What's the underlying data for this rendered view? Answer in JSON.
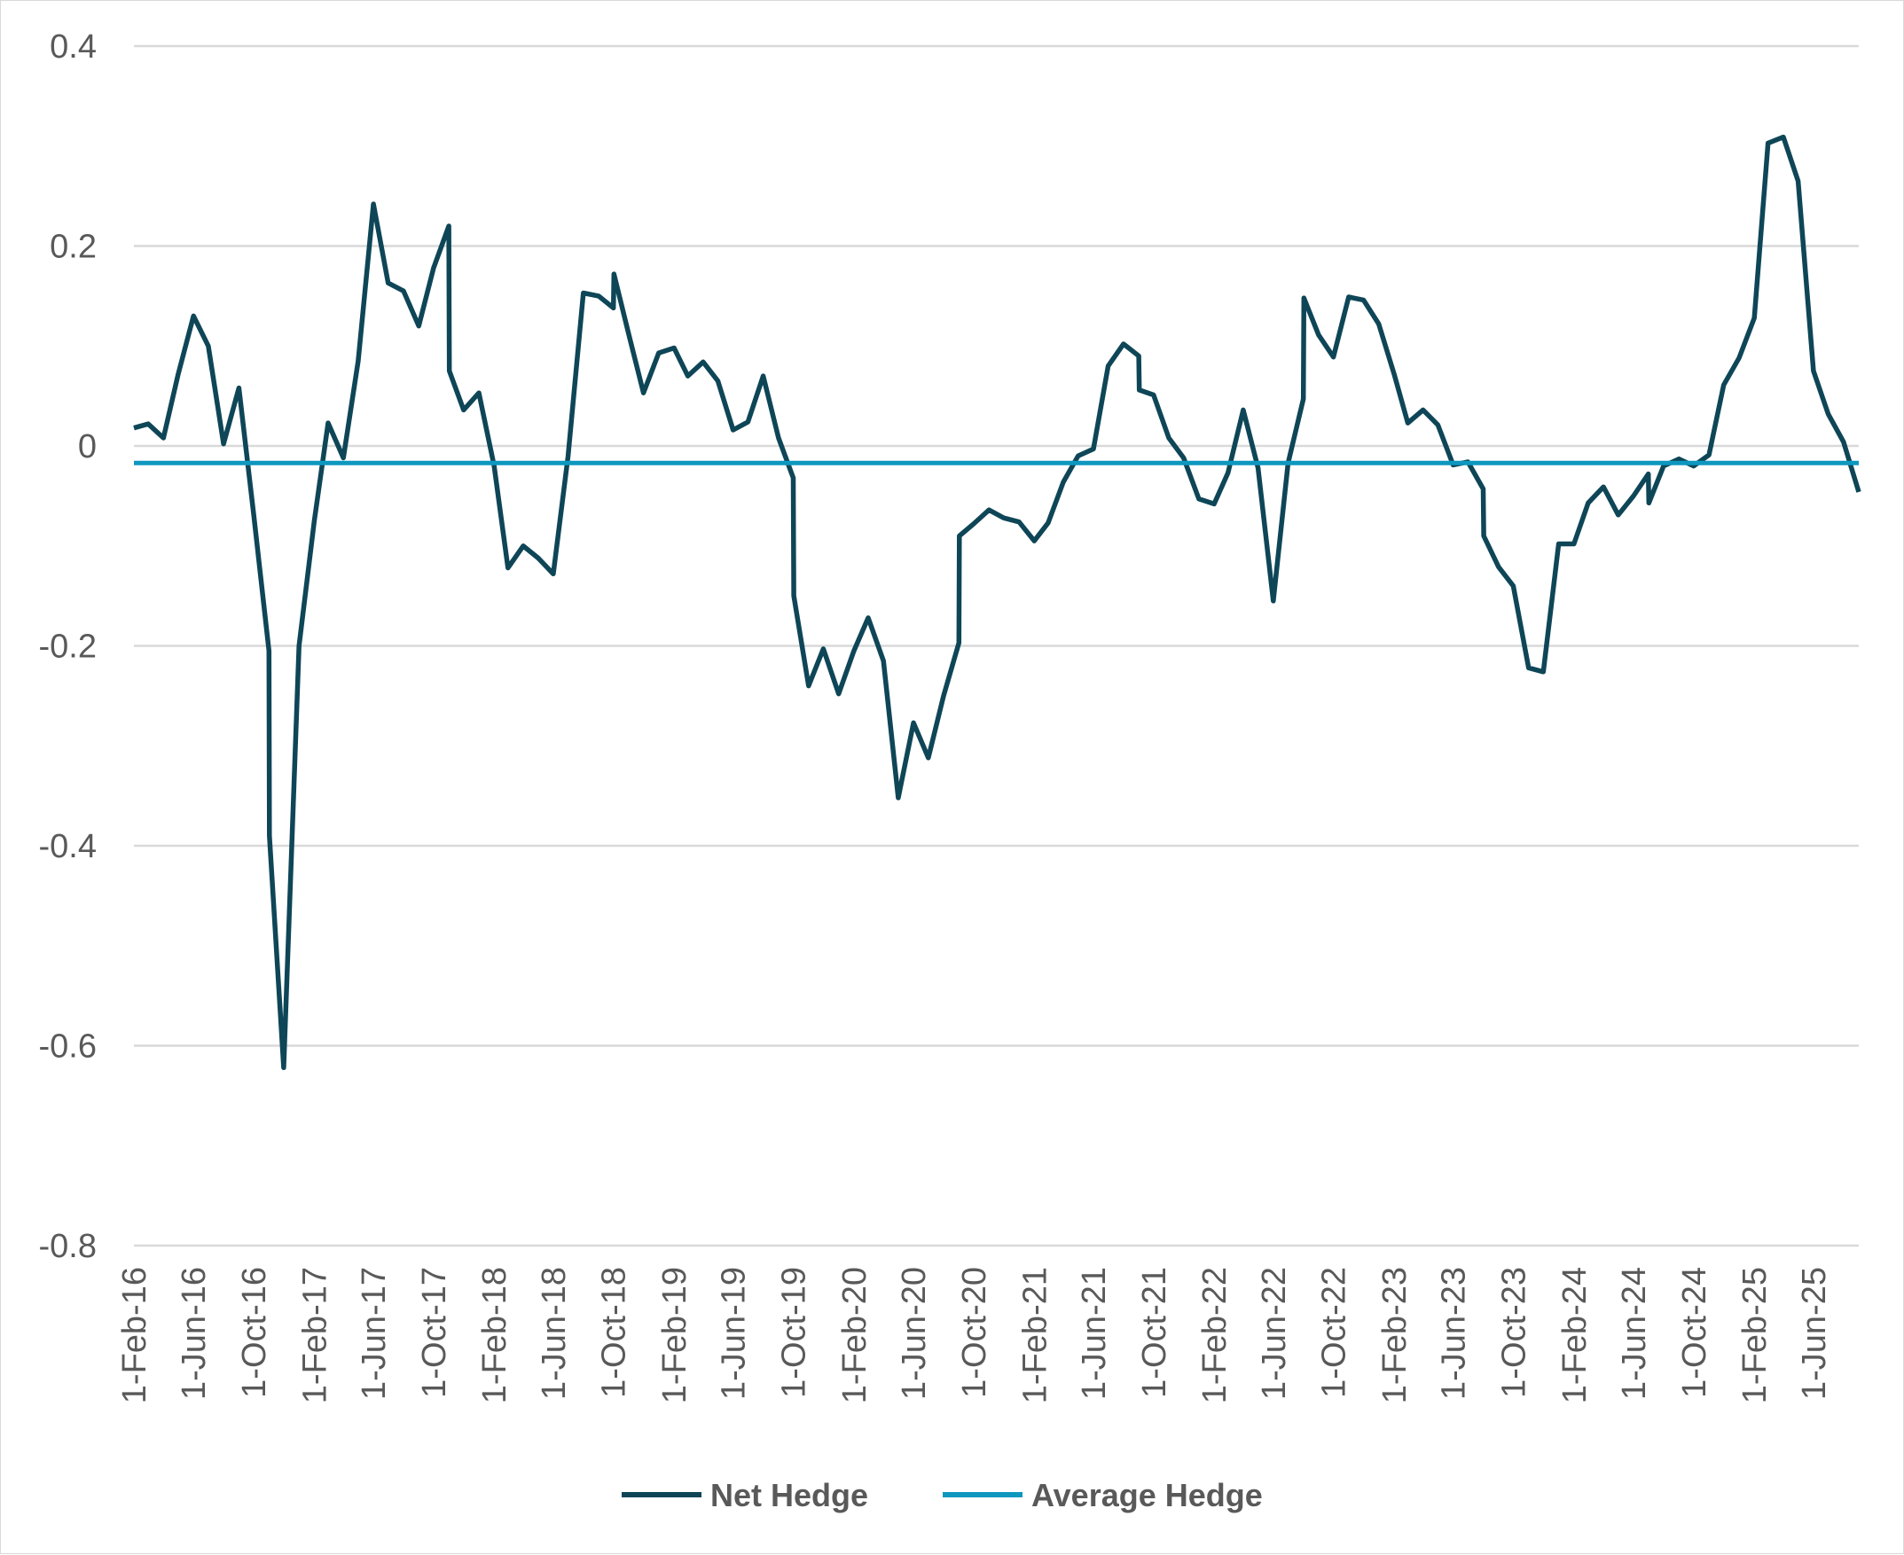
{
  "chart_data": {
    "type": "line",
    "title": "",
    "xlabel": "",
    "ylabel": "",
    "ylim": [
      -0.8,
      0.4
    ],
    "y_ticks": [
      "0.4",
      "0.2",
      "0",
      "-0.2",
      "-0.4",
      "-0.6",
      "-0.8"
    ],
    "y_tick_values": [
      0.4,
      0.2,
      0,
      -0.2,
      -0.4,
      -0.6,
      -0.8
    ],
    "grid": "horizontal",
    "legend_position": "bottom",
    "x_ticks": [
      "1-Feb-16",
      "1-Jun-16",
      "1-Oct-16",
      "1-Feb-17",
      "1-Jun-17",
      "1-Oct-17",
      "1-Feb-18",
      "1-Jun-18",
      "1-Oct-18",
      "1-Feb-19",
      "1-Jun-19",
      "1-Oct-19",
      "1-Feb-20",
      "1-Jun-20",
      "1-Oct-20",
      "1-Feb-21",
      "1-Jun-21",
      "1-Oct-21",
      "1-Feb-22",
      "1-Jun-22",
      "1-Oct-22",
      "1-Feb-23",
      "1-Jun-23",
      "1-Oct-23",
      "1-Feb-24",
      "1-Jun-24",
      "1-Oct-24",
      "1-Feb-25",
      "1-Jun-25"
    ],
    "x_range": [
      "2016-02-01",
      "2025-09-01"
    ],
    "series": [
      {
        "name": "Net Hedge",
        "color": "#0e4657",
        "points": [
          [
            "2016-02-01",
            0.018
          ],
          [
            "2016-03-01",
            0.022
          ],
          [
            "2016-04-01",
            0.008
          ],
          [
            "2016-05-01",
            0.072
          ],
          [
            "2016-06-01",
            0.13
          ],
          [
            "2016-07-01",
            0.1
          ],
          [
            "2016-08-01",
            0.002
          ],
          [
            "2016-09-01",
            0.058
          ],
          [
            "2016-10-01",
            -0.068
          ],
          [
            "2016-11-01",
            -0.205
          ],
          [
            "2016-11-02",
            -0.39
          ],
          [
            "2016-12-01",
            -0.622
          ],
          [
            "2017-01-01",
            -0.2
          ],
          [
            "2017-02-01",
            -0.075
          ],
          [
            "2017-03-01",
            0.023
          ],
          [
            "2017-04-01",
            -0.012
          ],
          [
            "2017-05-01",
            0.085
          ],
          [
            "2017-06-01",
            0.242
          ],
          [
            "2017-07-01",
            0.163
          ],
          [
            "2017-08-01",
            0.155
          ],
          [
            "2017-09-01",
            0.12
          ],
          [
            "2017-10-01",
            0.178
          ],
          [
            "2017-11-01",
            0.22
          ],
          [
            "2017-11-02",
            0.075
          ],
          [
            "2017-12-01",
            0.036
          ],
          [
            "2018-01-01",
            0.053
          ],
          [
            "2018-02-01",
            -0.02
          ],
          [
            "2018-03-01",
            -0.122
          ],
          [
            "2018-04-01",
            -0.1
          ],
          [
            "2018-05-01",
            -0.112
          ],
          [
            "2018-06-01",
            -0.128
          ],
          [
            "2018-07-01",
            -0.01
          ],
          [
            "2018-08-01",
            0.153
          ],
          [
            "2018-09-01",
            0.15
          ],
          [
            "2018-10-01",
            0.138
          ],
          [
            "2018-10-02",
            0.172
          ],
          [
            "2018-11-01",
            0.112
          ],
          [
            "2018-12-01",
            0.053
          ],
          [
            "2019-01-01",
            0.093
          ],
          [
            "2019-02-01",
            0.098
          ],
          [
            "2019-03-01",
            0.07
          ],
          [
            "2019-04-01",
            0.084
          ],
          [
            "2019-05-01",
            0.065
          ],
          [
            "2019-06-01",
            0.016
          ],
          [
            "2019-07-01",
            0.024
          ],
          [
            "2019-08-01",
            0.07
          ],
          [
            "2019-09-01",
            0.008
          ],
          [
            "2019-10-01",
            -0.032
          ],
          [
            "2019-10-02",
            -0.15
          ],
          [
            "2019-11-01",
            -0.24
          ],
          [
            "2019-12-01",
            -0.203
          ],
          [
            "2020-01-01",
            -0.248
          ],
          [
            "2020-02-01",
            -0.205
          ],
          [
            "2020-03-01",
            -0.172
          ],
          [
            "2020-04-01",
            -0.215
          ],
          [
            "2020-05-01",
            -0.352
          ],
          [
            "2020-06-01",
            -0.277
          ],
          [
            "2020-07-01",
            -0.312
          ],
          [
            "2020-08-01",
            -0.25
          ],
          [
            "2020-09-01",
            -0.197
          ],
          [
            "2020-09-02",
            -0.09
          ],
          [
            "2020-10-01",
            -0.078
          ],
          [
            "2020-11-01",
            -0.064
          ],
          [
            "2020-12-01",
            -0.072
          ],
          [
            "2021-01-01",
            -0.076
          ],
          [
            "2021-02-01",
            -0.095
          ],
          [
            "2021-03-01",
            -0.077
          ],
          [
            "2021-04-01",
            -0.036
          ],
          [
            "2021-05-01",
            -0.01
          ],
          [
            "2021-06-01",
            -0.003
          ],
          [
            "2021-07-01",
            0.08
          ],
          [
            "2021-08-01",
            0.102
          ],
          [
            "2021-09-01",
            0.09
          ],
          [
            "2021-09-02",
            0.056
          ],
          [
            "2021-10-01",
            0.051
          ],
          [
            "2021-11-01",
            0.008
          ],
          [
            "2021-12-01",
            -0.012
          ],
          [
            "2022-01-01",
            -0.053
          ],
          [
            "2022-02-01",
            -0.058
          ],
          [
            "2022-03-01",
            -0.027
          ],
          [
            "2022-04-01",
            0.036
          ],
          [
            "2022-05-01",
            -0.022
          ],
          [
            "2022-06-01",
            -0.155
          ],
          [
            "2022-07-01",
            -0.017
          ],
          [
            "2022-08-01",
            0.047
          ],
          [
            "2022-08-02",
            0.148
          ],
          [
            "2022-09-01",
            0.111
          ],
          [
            "2022-10-01",
            0.089
          ],
          [
            "2022-11-01",
            0.149
          ],
          [
            "2022-12-01",
            0.146
          ],
          [
            "2023-01-01",
            0.122
          ],
          [
            "2023-02-01",
            0.072
          ],
          [
            "2023-03-01",
            0.023
          ],
          [
            "2023-04-01",
            0.036
          ],
          [
            "2023-05-01",
            0.021
          ],
          [
            "2023-06-01",
            -0.019
          ],
          [
            "2023-07-01",
            -0.016
          ],
          [
            "2023-08-01",
            -0.043
          ],
          [
            "2023-08-02",
            -0.09
          ],
          [
            "2023-09-01",
            -0.121
          ],
          [
            "2023-10-01",
            -0.14
          ],
          [
            "2023-11-01",
            -0.222
          ],
          [
            "2023-12-01",
            -0.226
          ],
          [
            "2024-01-01",
            -0.098
          ],
          [
            "2024-02-01",
            -0.098
          ],
          [
            "2024-03-01",
            -0.057
          ],
          [
            "2024-04-01",
            -0.041
          ],
          [
            "2024-05-01",
            -0.069
          ],
          [
            "2024-06-01",
            -0.05
          ],
          [
            "2024-07-01",
            -0.028
          ],
          [
            "2024-07-02",
            -0.057
          ],
          [
            "2024-08-01",
            -0.02
          ],
          [
            "2024-09-01",
            -0.013
          ],
          [
            "2024-10-01",
            -0.02
          ],
          [
            "2024-11-01",
            -0.009
          ],
          [
            "2024-12-01",
            0.061
          ],
          [
            "2025-01-01",
            0.088
          ],
          [
            "2025-02-01",
            0.128
          ],
          [
            "2025-03-01",
            0.303
          ],
          [
            "2025-04-01",
            0.309
          ],
          [
            "2025-05-01",
            0.265
          ],
          [
            "2025-06-01",
            0.075
          ],
          [
            "2025-07-01",
            0.032
          ],
          [
            "2025-08-01",
            0.004
          ],
          [
            "2025-09-01",
            -0.046
          ]
        ]
      },
      {
        "name": "Average Hedge",
        "color": "#0e97bf",
        "points": [
          [
            "2016-02-01",
            -0.017
          ],
          [
            "2025-09-01",
            -0.017
          ]
        ]
      }
    ]
  }
}
